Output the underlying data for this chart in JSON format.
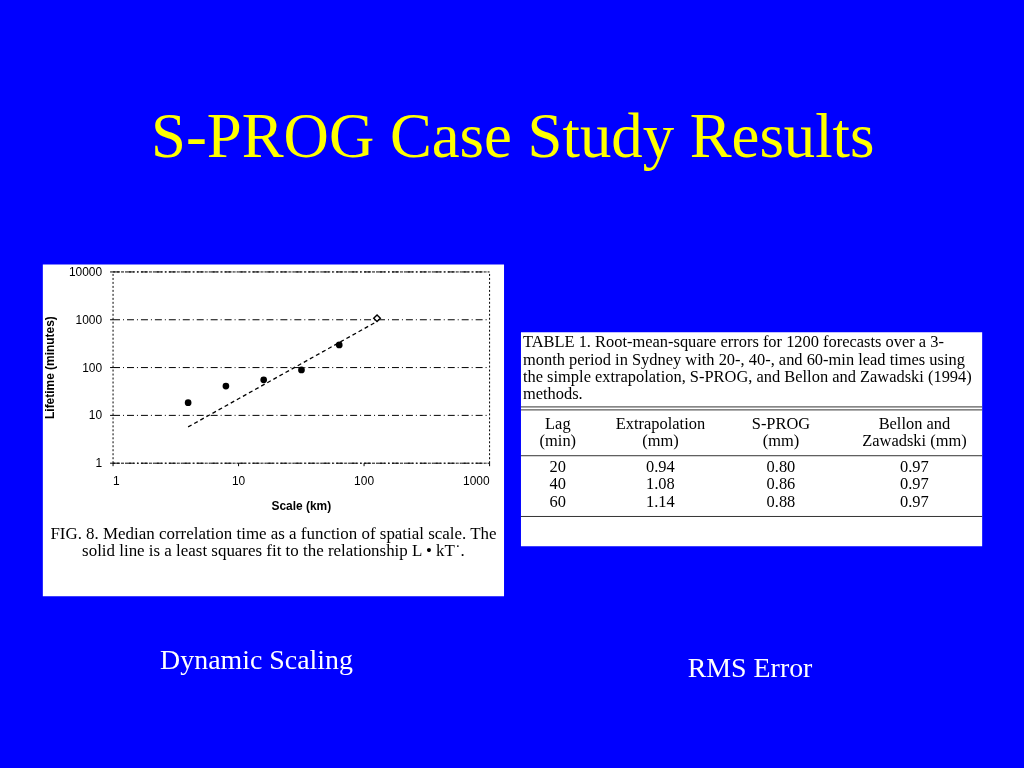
{
  "chart_data": [
    {
      "type": "scatter",
      "title": "S-PROG Case Study Results",
      "xlabel": "Scale (km)",
      "ylabel": "Lifetime (minutes)",
      "log": "xy",
      "xlim": [
        1,
        1000
      ],
      "ylim": [
        1,
        10000
      ],
      "xticks": [
        1,
        10,
        100,
        1000
      ],
      "yticks": [
        1,
        10,
        100,
        1000,
        10000
      ],
      "grid": "y",
      "x": [
        4,
        8,
        16,
        32,
        64,
        128
      ],
      "series": [
        {
          "color": "#000000",
          "marker": "circle",
          "values": [
            18,
            40,
            54,
            87,
            290,
            null
          ]
        },
        {
          "color": "#000000",
          "marker": "diamond",
          "values": [
            null,
            null,
            null,
            null,
            null,
            1050
          ]
        },
        {
          "type": "line",
          "color": "#000000",
          "line_style": "dashed",
          "x": [
            4,
            128
          ],
          "values": [
            5.6,
            900
          ]
        }
      ],
      "annotations": [
        "FIG. 8. Median correlation time as a function of spatial scale. The solid line is a least squares fit to the relationship L • kT˙.",
        "Dynamic Scaling"
      ]
    },
    {
      "type": "other",
      "title": "TABLE 1. Root-mean-square errors for 1200 forecasts over a 3-month period in Sydney with 20-, 40-, and 60-min lead times using the simple extrapolation, S-PROG, and Bellon and Zawadski (1994) methods.",
      "xlabel": "Lag (min)",
      "categories": [
        "20",
        "40",
        "60"
      ],
      "series": [
        {
          "name": "Extrapolation (mm)",
          "values": [
            0.94,
            1.08,
            1.14
          ]
        },
        {
          "name": "S-PROG (mm)",
          "values": [
            0.8,
            0.86,
            0.88
          ],
          "value_labels": [
            "0.80",
            "0.86",
            "0.88"
          ]
        },
        {
          "name": "Bellon and Zawadski (mm)",
          "values": [
            0.97,
            0.97,
            0.97
          ]
        }
      ],
      "data_labels": true,
      "annotations": [
        "RMS Error"
      ]
    }
  ]
}
